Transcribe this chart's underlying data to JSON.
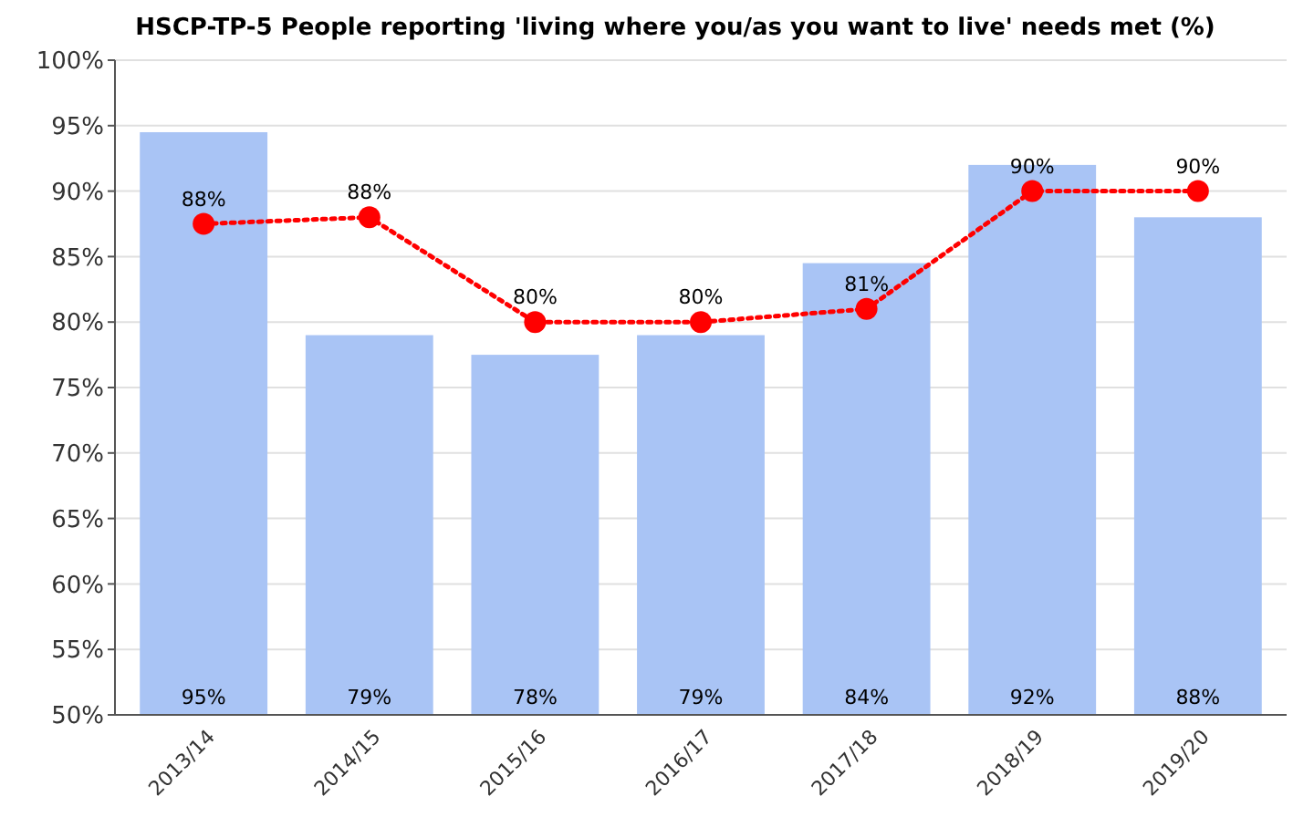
{
  "chart_data": {
    "type": "bar",
    "title": "HSCP-TP-5 People reporting 'living where you/as you want to live' needs met (%)",
    "categories": [
      "2013/14",
      "2014/15",
      "2015/16",
      "2016/17",
      "2017/18",
      "2018/19",
      "2019/20"
    ],
    "series": [
      {
        "color": "#a9c4f5",
        "values": [
          94.5,
          79,
          77.5,
          79,
          84.5,
          92,
          88
        ],
        "value_labels": [
          "95%",
          "79%",
          "78%",
          "79%",
          "84%",
          "92%",
          "88%"
        ]
      },
      {
        "type": "line",
        "color": "#ff0000",
        "marker": "circle",
        "line_style": "dotted",
        "values": [
          87.5,
          88,
          80,
          80,
          81,
          90,
          90
        ],
        "value_labels": [
          "88%",
          "88%",
          "80%",
          "80%",
          "81%",
          "90%",
          "90%"
        ]
      }
    ],
    "ylim": [
      50,
      100
    ],
    "yticks": [
      {
        "value": 50,
        "label": "50%"
      },
      {
        "value": 55,
        "label": "55%"
      },
      {
        "value": 60,
        "label": "60%"
      },
      {
        "value": 65,
        "label": "65%"
      },
      {
        "value": 70,
        "label": "70%"
      },
      {
        "value": 75,
        "label": "75%"
      },
      {
        "value": 80,
        "label": "80%"
      },
      {
        "value": 85,
        "label": "85%"
      },
      {
        "value": 90,
        "label": "90%"
      },
      {
        "value": 95,
        "label": "95%"
      },
      {
        "value": 100,
        "label": "100%"
      }
    ],
    "grid": "y"
  }
}
